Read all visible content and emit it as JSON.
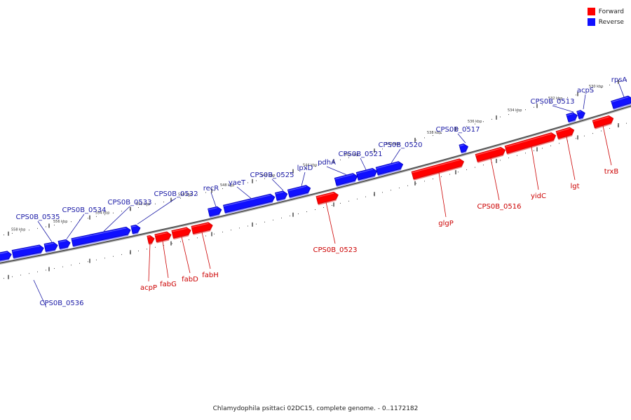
{
  "caption": "Chlamydophila psittaci 02DC15, complete genome. - 0..1172182",
  "legend": [
    {
      "label": "Forward",
      "color": "#ff0000"
    },
    {
      "label": "Reverse",
      "color": "#1010ff"
    }
  ],
  "colors": {
    "forward": "#ff0000",
    "forward_dark": "#cc0000",
    "forward_light": "#f08080",
    "reverse": "#1010ff",
    "reverse_dark": "#0000bb",
    "reverse_light": "#8888ff",
    "forward_label": "#cc0000",
    "reverse_label": "#1a1aa6",
    "backbone": "#555555"
  },
  "tick_labels": [
    "558 kbp",
    "556 kbp",
    "554 kbp",
    "552 kbp",
    "550 kbp",
    "548 kbp",
    "546 kbp",
    "544 kbp",
    "542 kbp",
    "540 kbp",
    "538 kbp",
    "536 kbp",
    "534 kbp",
    "532 kbp",
    "530 kbp"
  ],
  "genes": [
    {
      "strand": "reverse",
      "label": ""
    },
    {
      "strand": "reverse",
      "label": ""
    },
    {
      "strand": "reverse",
      "label": "CPS0B_0535"
    },
    {
      "strand": "reverse",
      "label": "CPS0B_0534"
    },
    {
      "strand": "reverse",
      "label": "CPS0B_0533"
    },
    {
      "strand": "reverse",
      "label": "CPS0B_0532"
    },
    {
      "strand": "reverse",
      "label": "recR"
    },
    {
      "strand": "reverse",
      "label": "yaeT"
    },
    {
      "strand": "reverse",
      "label": "CPS0B_0525"
    },
    {
      "strand": "reverse",
      "label": "lpxD"
    },
    {
      "strand": "reverse",
      "label": "pdhA"
    },
    {
      "strand": "reverse",
      "label": "CPS0B_0521"
    },
    {
      "strand": "reverse",
      "label": "CPS0B_0520"
    },
    {
      "strand": "reverse",
      "label": "CPS0B_0517"
    },
    {
      "strand": "reverse",
      "label": "CPS0B_0513"
    },
    {
      "strand": "reverse",
      "label": "acpS"
    },
    {
      "strand": "reverse",
      "label": "rpsA"
    },
    {
      "strand": "forward",
      "label": "acpP"
    },
    {
      "strand": "forward",
      "label": "fabG"
    },
    {
      "strand": "forward",
      "label": "fabD"
    },
    {
      "strand": "forward",
      "label": "fabH"
    },
    {
      "strand": "forward",
      "label": "CPS0B_0523"
    },
    {
      "strand": "forward",
      "label": "glgP"
    },
    {
      "strand": "forward",
      "label": "CPS0B_0516"
    },
    {
      "strand": "forward",
      "label": "yidC"
    },
    {
      "strand": "forward",
      "label": "lgt"
    },
    {
      "strand": "forward",
      "label": "trxB"
    },
    {
      "strand": "reverse",
      "label": "CPS0B_0536"
    }
  ]
}
